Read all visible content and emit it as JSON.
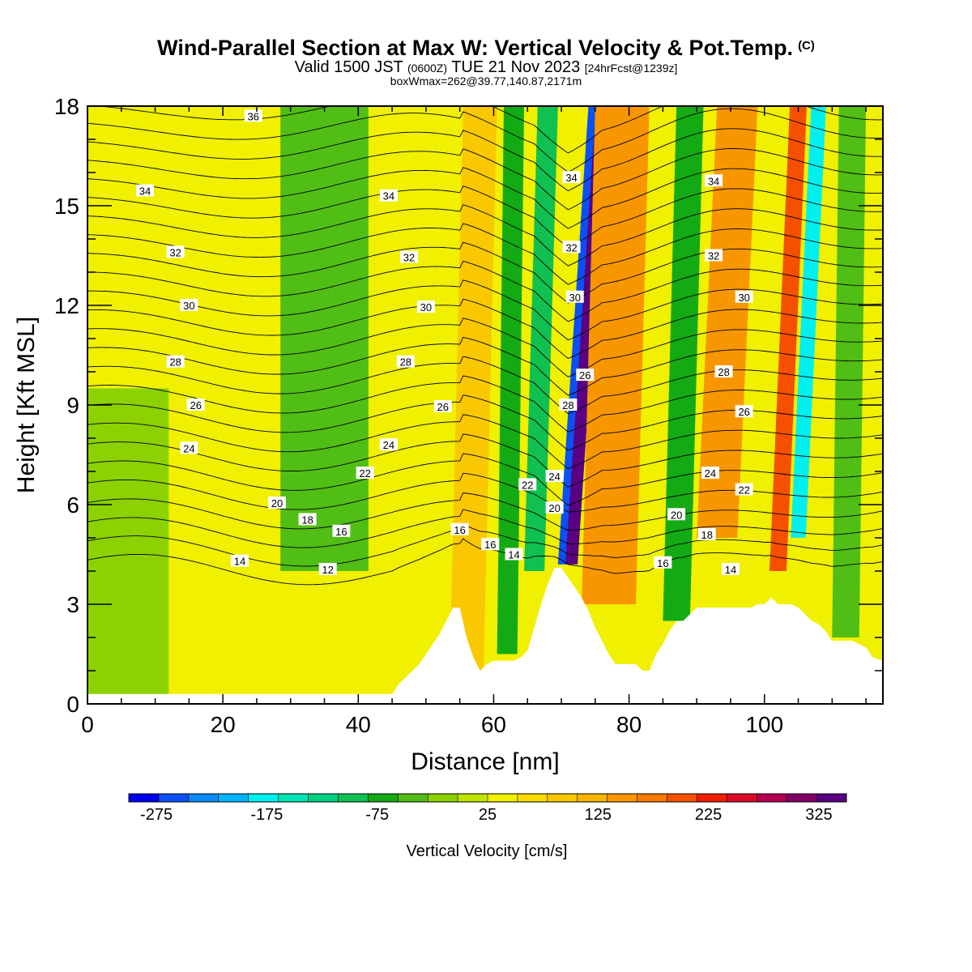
{
  "title": {
    "main": "Wind-Parallel Section at Max W: Vertical Velocity & Pot.Temp.",
    "copyright": "(C)",
    "valid_prefix": "Valid 1500 JST",
    "valid_utc": "(0600Z)",
    "valid_date": "TUE 21 Nov 2023",
    "forecast": "[24hrFcst@1239z]",
    "box_info": "boxWmax=262@39.77,140.87,2171m"
  },
  "chart_data": {
    "type": "heatmap",
    "xlabel": "Distance [nm]",
    "ylabel": "Height [Kft MSL]",
    "xlim": [
      0,
      117.5
    ],
    "ylim": [
      0,
      18
    ],
    "x_ticks": [
      "0",
      "20",
      "40",
      "60",
      "80",
      "100"
    ],
    "x_tick_values": [
      0,
      20,
      40,
      60,
      80,
      100
    ],
    "y_ticks": [
      "0",
      "3",
      "6",
      "9",
      "12",
      "15",
      "18"
    ],
    "y_tick_values": [
      0,
      3,
      6,
      9,
      12,
      15,
      18
    ],
    "colorbar": {
      "label": "Vertical Velocity [cm/s]",
      "tick_labels": [
        "-275",
        "-175",
        "-75",
        "25",
        "125",
        "225",
        "325"
      ],
      "tick_values": [
        -275,
        -175,
        -75,
        25,
        125,
        225,
        325
      ],
      "min": -300,
      "max": 350,
      "step": 25,
      "colors": [
        "#0000f0",
        "#0a50f4",
        "#0a8cf8",
        "#00b4fa",
        "#00f0f0",
        "#00e6b4",
        "#00d282",
        "#10c050",
        "#14aa14",
        "#50be14",
        "#8cd200",
        "#bee600",
        "#f0f000",
        "#fadc00",
        "#fac800",
        "#fab400",
        "#f89600",
        "#f87800",
        "#f55000",
        "#f01e00",
        "#dc0a28",
        "#b40050",
        "#820064",
        "#5a0082"
      ]
    },
    "theta_contours": {
      "units": "Pot.Temp.",
      "levels": [
        12,
        13,
        14,
        15,
        16,
        17,
        18,
        19,
        20,
        21,
        22,
        23,
        24,
        25,
        26,
        27,
        28,
        29,
        30,
        31,
        32,
        33,
        34,
        35,
        36
      ],
      "labels": [
        {
          "text": "36",
          "x": 24.5,
          "y": 17.7
        },
        {
          "text": "34",
          "x": 8.5,
          "y": 15.45
        },
        {
          "text": "34",
          "x": 44.5,
          "y": 15.3
        },
        {
          "text": "32",
          "x": 13,
          "y": 13.6
        },
        {
          "text": "32",
          "x": 47.5,
          "y": 13.45
        },
        {
          "text": "30",
          "x": 15,
          "y": 12.0
        },
        {
          "text": "30",
          "x": 50,
          "y": 11.95
        },
        {
          "text": "28",
          "x": 13,
          "y": 10.3
        },
        {
          "text": "28",
          "x": 47,
          "y": 10.3
        },
        {
          "text": "26",
          "x": 16,
          "y": 9.0
        },
        {
          "text": "26",
          "x": 52.5,
          "y": 8.95
        },
        {
          "text": "24",
          "x": 15,
          "y": 7.7
        },
        {
          "text": "24",
          "x": 44.5,
          "y": 7.8
        },
        {
          "text": "22",
          "x": 41,
          "y": 6.95
        },
        {
          "text": "20",
          "x": 28,
          "y": 6.05
        },
        {
          "text": "18",
          "x": 32.5,
          "y": 5.55
        },
        {
          "text": "16",
          "x": 37.5,
          "y": 5.2
        },
        {
          "text": "14",
          "x": 22.5,
          "y": 4.3
        },
        {
          "text": "12",
          "x": 35.5,
          "y": 4.05
        },
        {
          "text": "16",
          "x": 55,
          "y": 5.25
        },
        {
          "text": "16",
          "x": 59.5,
          "y": 4.8
        },
        {
          "text": "14",
          "x": 63,
          "y": 4.5
        },
        {
          "text": "22",
          "x": 65,
          "y": 6.6
        },
        {
          "text": "24",
          "x": 69,
          "y": 6.85
        },
        {
          "text": "20",
          "x": 69,
          "y": 5.9
        },
        {
          "text": "34",
          "x": 71.5,
          "y": 15.85
        },
        {
          "text": "32",
          "x": 71.5,
          "y": 13.75
        },
        {
          "text": "30",
          "x": 72,
          "y": 12.25
        },
        {
          "text": "26",
          "x": 73.5,
          "y": 9.9
        },
        {
          "text": "28",
          "x": 71,
          "y": 9.0
        },
        {
          "text": "34",
          "x": 92.5,
          "y": 15.75
        },
        {
          "text": "32",
          "x": 92.5,
          "y": 13.5
        },
        {
          "text": "30",
          "x": 97,
          "y": 12.25
        },
        {
          "text": "28",
          "x": 94,
          "y": 10.0
        },
        {
          "text": "26",
          "x": 97,
          "y": 8.8
        },
        {
          "text": "24",
          "x": 92,
          "y": 6.95
        },
        {
          "text": "22",
          "x": 97,
          "y": 6.45
        },
        {
          "text": "20",
          "x": 87,
          "y": 5.7
        },
        {
          "text": "18",
          "x": 91.5,
          "y": 5.1
        },
        {
          "text": "16",
          "x": 85,
          "y": 4.25
        },
        {
          "text": "14",
          "x": 95,
          "y": 4.05
        }
      ]
    },
    "terrain_profile": {
      "x": [
        0,
        45,
        46,
        47,
        48,
        49,
        50,
        51,
        52,
        53,
        54,
        55,
        56,
        57,
        58,
        59,
        60,
        61,
        62,
        63,
        64,
        65,
        66,
        67,
        68,
        69,
        70,
        71,
        72,
        73,
        74,
        75,
        76,
        77,
        78,
        79,
        80,
        81,
        82,
        83,
        84,
        85,
        86,
        87,
        88,
        89,
        90,
        91,
        92,
        93,
        94,
        95,
        96,
        97,
        98,
        99,
        100,
        101,
        102,
        103,
        104,
        105,
        106,
        107,
        108,
        109,
        110,
        111,
        112,
        113,
        114,
        115,
        116,
        117.5
      ],
      "height": [
        0.3,
        0.3,
        0.6,
        0.8,
        1.0,
        1.2,
        1.5,
        1.8,
        2.1,
        2.5,
        2.9,
        2.9,
        2.0,
        1.4,
        1.0,
        1.2,
        1.3,
        1.3,
        1.3,
        1.3,
        1.4,
        1.6,
        2.3,
        3.0,
        3.6,
        4.1,
        4.1,
        3.8,
        3.5,
        3.2,
        2.8,
        2.3,
        1.9,
        1.5,
        1.2,
        1.2,
        1.2,
        1.2,
        1.0,
        1.0,
        1.5,
        1.8,
        2.2,
        2.5,
        2.5,
        2.7,
        2.9,
        2.9,
        2.9,
        2.9,
        2.9,
        2.9,
        2.9,
        2.9,
        2.9,
        3.0,
        3.0,
        3.2,
        3.0,
        3.0,
        3.0,
        2.9,
        2.7,
        2.5,
        2.4,
        2.2,
        1.9,
        1.9,
        1.9,
        1.9,
        1.8,
        1.7,
        1.4,
        1.3
      ]
    },
    "vertical_velocity_bands": [
      {
        "x_center": 5,
        "x_width": 14,
        "y_from": 0,
        "y_to": 9.5,
        "value": -40
      },
      {
        "x_center": 35,
        "x_width": 13,
        "y_from": 4,
        "y_to": 18,
        "value": -60
      },
      {
        "x_center": 56,
        "x_width": 5,
        "y_from": 1,
        "y_to": 18,
        "value": 60,
        "tilt": 2
      },
      {
        "x_center": 62,
        "x_width": 3,
        "y_from": 1.5,
        "y_to": 18,
        "value": -90,
        "tilt": 1
      },
      {
        "x_center": 66,
        "x_width": 3,
        "y_from": 4,
        "y_to": 18,
        "value": -110,
        "tilt": 2
      },
      {
        "x_center": 70.3,
        "x_width": 1.6,
        "y_from": 4.2,
        "y_to": 18,
        "value": -260,
        "tilt": 4.5
      },
      {
        "x_center": 71.5,
        "x_width": 1.8,
        "y_from": 4.2,
        "y_to": 18,
        "value": 300,
        "tilt": 4.5
      },
      {
        "x_center": 77,
        "x_width": 8,
        "y_from": 3,
        "y_to": 18,
        "value": 110,
        "tilt": 2
      },
      {
        "x_center": 87,
        "x_width": 4,
        "y_from": 2.5,
        "y_to": 18,
        "value": -80,
        "tilt": 2
      },
      {
        "x_center": 93,
        "x_width": 6,
        "y_from": 5,
        "y_to": 18,
        "value": 100,
        "tilt": 3
      },
      {
        "x_center": 102,
        "x_width": 2.5,
        "y_from": 4,
        "y_to": 18,
        "value": 160,
        "tilt": 3
      },
      {
        "x_center": 105,
        "x_width": 2.2,
        "y_from": 5,
        "y_to": 18,
        "value": -190,
        "tilt": 3
      },
      {
        "x_center": 112,
        "x_width": 4,
        "y_from": 2,
        "y_to": 18,
        "value": -60,
        "tilt": 1
      }
    ]
  }
}
